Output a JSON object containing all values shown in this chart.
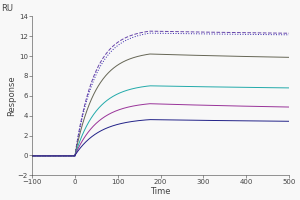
{
  "title": "RU",
  "xlabel": "Time",
  "ylabel": "Response",
  "xlim": [
    -100,
    500
  ],
  "ylim": [
    -2,
    14
  ],
  "yticks": [
    -2,
    0,
    2,
    4,
    6,
    8,
    10,
    12,
    14
  ],
  "xticks": [
    -100,
    0,
    100,
    200,
    300,
    400,
    500
  ],
  "curves": [
    {
      "plateau": 12.0,
      "peak": 12.5,
      "color": "#6644aa",
      "style": "--",
      "lw": 0.7,
      "tau_on": 45.0,
      "tau_off": 600.0
    },
    {
      "plateau": 11.9,
      "peak": 12.3,
      "color": "#3322aa",
      "style": ":",
      "lw": 0.7,
      "tau_on": 48.0,
      "tau_off": 600.0
    },
    {
      "plateau": 9.4,
      "peak": 10.2,
      "color": "#666655",
      "style": "-",
      "lw": 0.7,
      "tau_on": 50.0,
      "tau_off": 600.0
    },
    {
      "plateau": 6.5,
      "peak": 7.0,
      "color": "#22aaaa",
      "style": "-",
      "lw": 0.7,
      "tau_on": 52.0,
      "tau_off": 600.0
    },
    {
      "plateau": 4.4,
      "peak": 5.2,
      "color": "#993399",
      "style": "-",
      "lw": 0.7,
      "tau_on": 55.0,
      "tau_off": 600.0
    },
    {
      "plateau": 3.2,
      "peak": 3.6,
      "color": "#222288",
      "style": "-",
      "lw": 0.7,
      "tau_on": 57.0,
      "tau_off": 600.0
    }
  ],
  "baseline_start": -100,
  "association_start": 0,
  "peak_time": 175,
  "dissociation_end": 500,
  "bg_color": "#f8f8f8",
  "axis_color": "#444444",
  "tick_fontsize": 5.0,
  "label_fontsize": 6.0,
  "title_fontsize": 6.0
}
